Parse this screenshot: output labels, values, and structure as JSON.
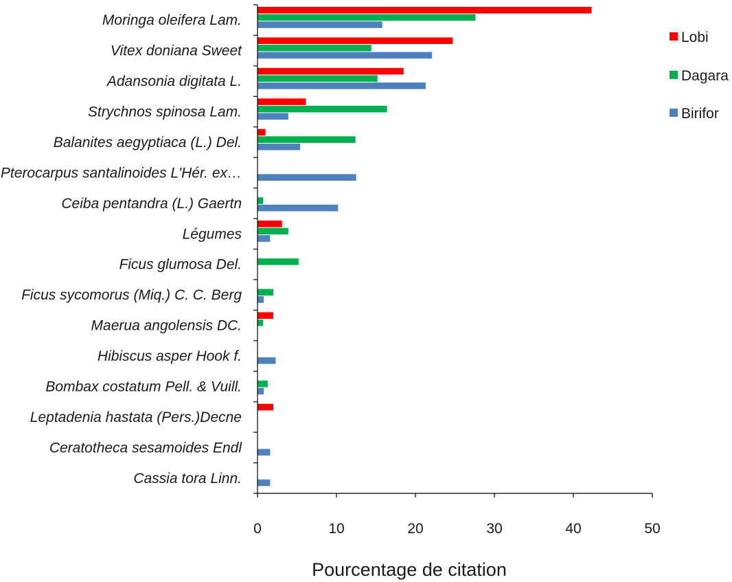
{
  "chart_data": {
    "type": "bar",
    "orientation": "horizontal",
    "xlabel": "Pourcentage de citation",
    "xlim": [
      0,
      50
    ],
    "xticks": [
      0,
      10,
      20,
      30,
      40,
      50
    ],
    "grid": false,
    "legend_position": "top-right",
    "categories": [
      "Moringa oleifera Lam.",
      "Vitex doniana Sweet",
      "Adansonia digitata L.",
      "Strychnos spinosa Lam.",
      "Balanites aegyptiaca (L.) Del.",
      "Pterocarpus santalinoides L'Hér. ex…",
      "Ceiba pentandra (L.) Gaertn",
      "Légumes",
      "Ficus glumosa Del.",
      "Ficus sycomorus (Miq.) C. C. Berg",
      "Maerua angolensis DC.",
      "Hibiscus asper Hook f.",
      "Bombax costatum Pell. & Vuill.",
      "Leptadenia hastata (Pers.)Decne",
      "Ceratotheca sesamoides Endl",
      "Cassia tora Linn."
    ],
    "series": [
      {
        "name": "Lobi",
        "color": "#ff0000",
        "values": [
          42.3,
          24.7,
          18.5,
          6.1,
          1.0,
          0,
          0,
          3.1,
          0,
          0,
          2.0,
          0,
          0,
          2.0,
          0,
          0
        ]
      },
      {
        "name": "Dagara",
        "color": "#00b050",
        "values": [
          27.6,
          14.4,
          15.2,
          16.4,
          12.4,
          0,
          0.7,
          3.9,
          5.2,
          2.0,
          0.7,
          0,
          1.3,
          0,
          0,
          0
        ]
      },
      {
        "name": "Birifor",
        "color": "#4f81bd",
        "values": [
          15.8,
          22.1,
          21.3,
          3.9,
          5.4,
          12.5,
          10.2,
          1.6,
          0,
          0.8,
          0,
          2.3,
          0.8,
          0,
          1.6,
          1.6
        ]
      }
    ]
  }
}
